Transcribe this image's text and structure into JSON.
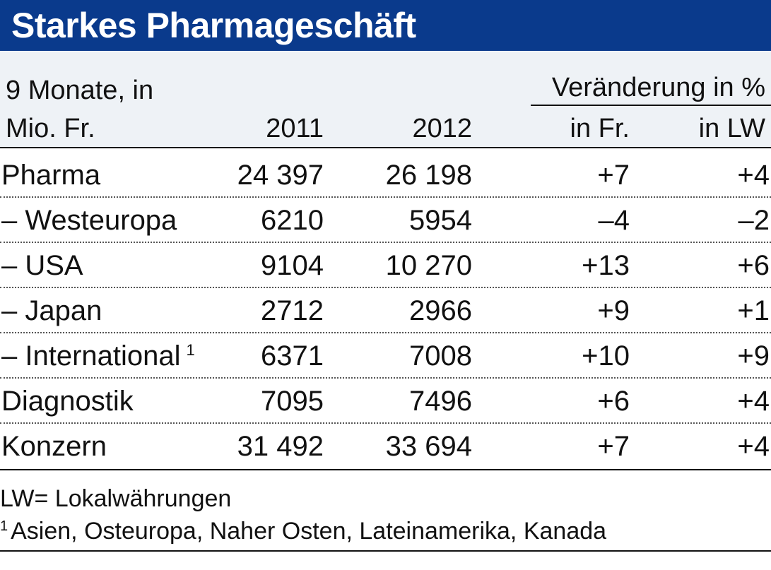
{
  "chart_data": {
    "type": "table",
    "title": "Starkes Pharmageschäft",
    "header": {
      "unit_line1": "9 Monate, in",
      "unit_line2": "Mio. Fr.",
      "col_2011": "2011",
      "col_2012": "2012",
      "change_group": "Veränderung in %",
      "col_in_fr": "in Fr.",
      "col_in_lw": "in LW"
    },
    "rows": [
      {
        "label": "Pharma",
        "v2011": "24 397",
        "v2012": "26 198",
        "in_fr": "+7",
        "in_lw": "+4"
      },
      {
        "label": "– Westeuropa",
        "v2011": "6210",
        "v2012": "5954",
        "in_fr": "–4",
        "in_lw": "–2"
      },
      {
        "label": "– USA",
        "v2011": "9104",
        "v2012": "10 270",
        "in_fr": "+13",
        "in_lw": "+6"
      },
      {
        "label": "– Japan",
        "v2011": "2712",
        "v2012": "2966",
        "in_fr": "+9",
        "in_lw": "+1"
      },
      {
        "label": "– International",
        "footnote": "1",
        "v2011": "6371",
        "v2012": "7008",
        "in_fr": "+10",
        "in_lw": "+9"
      },
      {
        "label": "Diagnostik",
        "v2011": "7095",
        "v2012": "7496",
        "in_fr": "+6",
        "in_lw": "+4"
      },
      {
        "label": "Konzern",
        "v2011": "31 492",
        "v2012": "33 694",
        "in_fr": "+7",
        "in_lw": "+4"
      }
    ],
    "notes": {
      "lw": "LW= Lokalwährungen",
      "footnote_mark": "1",
      "footnote_text": "Asien, Osteuropa, Naher Osten, Lateinamerika, Kanada"
    }
  },
  "colors": {
    "title_bar": "#0a3a8c",
    "header_bg": "#eef2f6",
    "text": "#111111"
  }
}
